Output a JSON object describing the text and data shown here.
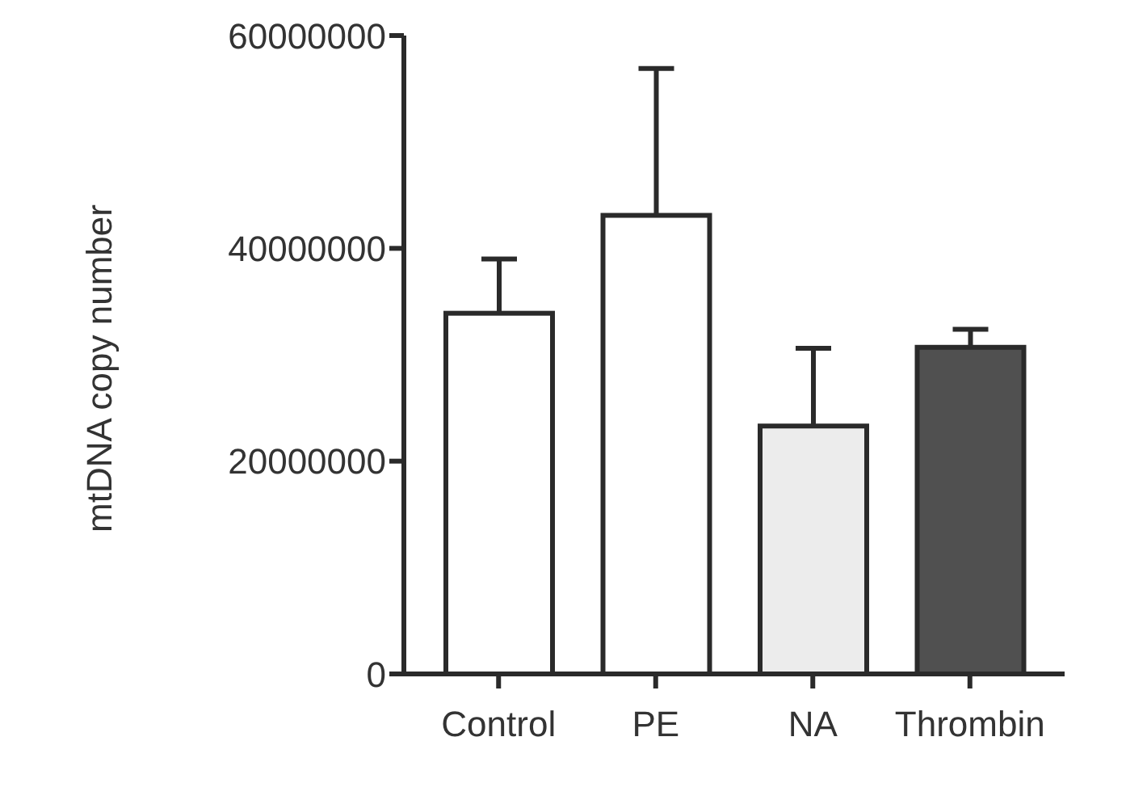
{
  "chart_data": {
    "type": "bar",
    "ylabel": "mtDNA copy number",
    "categories": [
      "Control",
      "PE",
      "NA",
      "Thrombin"
    ],
    "values": [
      33900000,
      43100000,
      23300000,
      30700000
    ],
    "colors": [
      "#ffffff",
      "#ffffff",
      "#ececec",
      "#505050"
    ],
    "errors": [
      [
        33900000,
        39000000
      ],
      [
        43100000,
        56900000
      ],
      [
        23300000,
        30600000
      ],
      [
        30700000,
        32400000
      ]
    ],
    "ylim": [
      0,
      60000000
    ],
    "yticks": [
      0,
      20000000,
      40000000,
      60000000
    ],
    "grid": false,
    "legend": false
  }
}
